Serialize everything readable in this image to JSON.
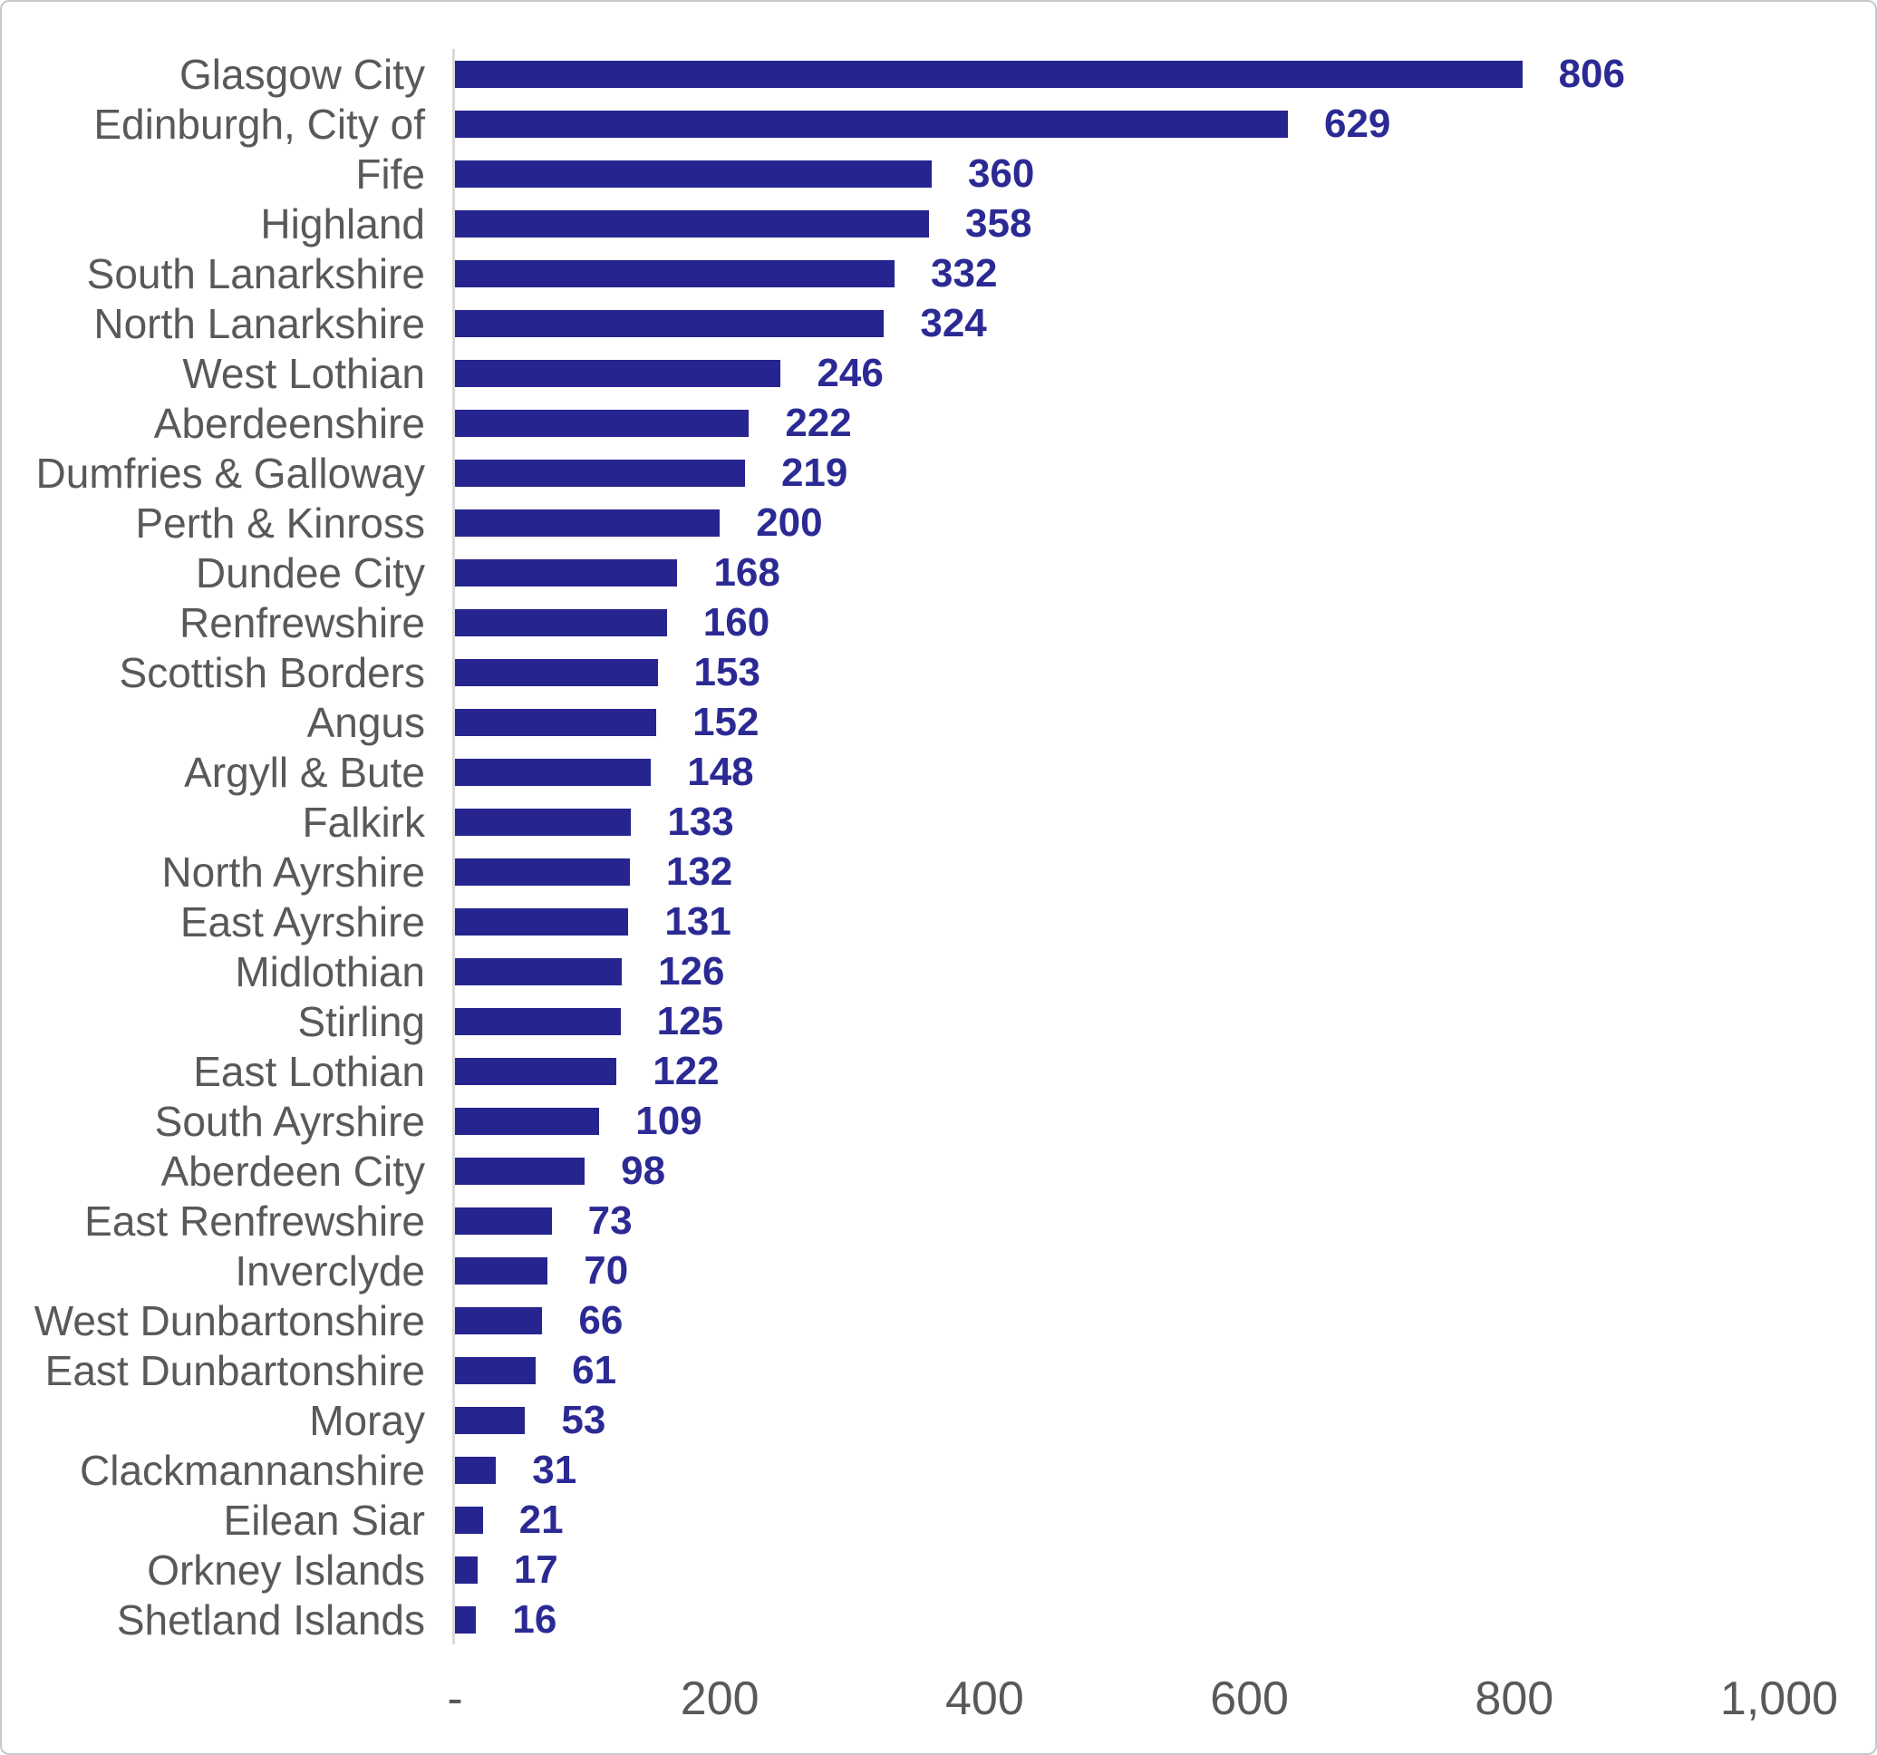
{
  "chart_data": {
    "type": "bar",
    "orientation": "horizontal",
    "title": "",
    "xlabel": "",
    "ylabel": "",
    "grid": false,
    "legend": false,
    "xlim": [
      0,
      1000
    ],
    "categories": [
      "Glasgow City",
      "Edinburgh, City of",
      "Fife",
      "Highland",
      "South Lanarkshire",
      "North Lanarkshire",
      "West Lothian",
      "Aberdeenshire",
      "Dumfries & Galloway",
      "Perth & Kinross",
      "Dundee City",
      "Renfrewshire",
      "Scottish Borders",
      "Angus",
      "Argyll & Bute",
      "Falkirk",
      "North Ayrshire",
      "East Ayrshire",
      "Midlothian",
      "Stirling",
      "East Lothian",
      "South Ayrshire",
      "Aberdeen City",
      "East Renfrewshire",
      "Inverclyde",
      "West Dunbartonshire",
      "East Dunbartonshire",
      "Moray",
      "Clackmannanshire",
      "Eilean Siar",
      "Orkney Islands",
      "Shetland Islands"
    ],
    "values": [
      806,
      629,
      360,
      358,
      332,
      324,
      246,
      222,
      219,
      200,
      168,
      160,
      153,
      152,
      148,
      133,
      132,
      131,
      126,
      125,
      122,
      109,
      98,
      73,
      70,
      66,
      61,
      53,
      31,
      21,
      17,
      16
    ],
    "x_ticks": [
      {
        "label": "-",
        "value": 0
      },
      {
        "label": "200",
        "value": 200
      },
      {
        "label": "400",
        "value": 400
      },
      {
        "label": "600",
        "value": 600
      },
      {
        "label": "800",
        "value": 800
      },
      {
        "label": "1,000",
        "value": 1000
      }
    ],
    "colors": {
      "bar": "#26248f",
      "value_label": "#2b2a94",
      "category_label": "#595959",
      "axis_line": "#d9d9d9",
      "border": "#c8c8c8"
    }
  }
}
